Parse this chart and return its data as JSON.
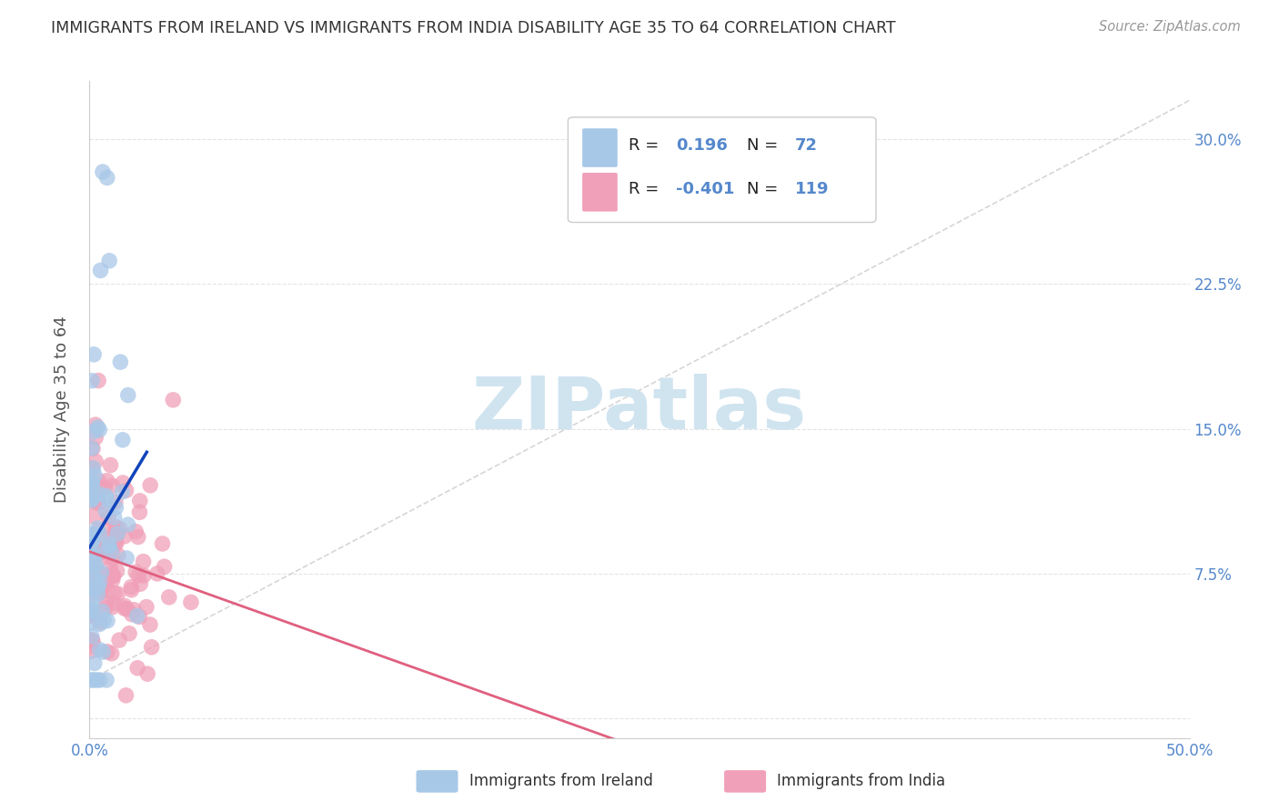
{
  "title": "IMMIGRANTS FROM IRELAND VS IMMIGRANTS FROM INDIA DISABILITY AGE 35 TO 64 CORRELATION CHART",
  "source": "Source: ZipAtlas.com",
  "ylabel": "Disability Age 35 to 64",
  "xlim": [
    0.0,
    0.5
  ],
  "ylim": [
    -0.01,
    0.33
  ],
  "ireland_R": 0.196,
  "ireland_N": 72,
  "india_R": -0.401,
  "india_N": 119,
  "ireland_color": "#a8c8e8",
  "india_color": "#f0a0b8",
  "ireland_line_color": "#1144bb",
  "india_line_color": "#e06080",
  "ref_line_color": "#cccccc",
  "legend_ireland": "Immigrants from Ireland",
  "legend_india": "Immigrants from India",
  "background_color": "#ffffff",
  "grid_color": "#dddddd",
  "text_color": "#333333",
  "axis_tick_color": "#5588cc",
  "watermark": "ZIPatlas",
  "watermark_color": "#d0e4f0",
  "ytick_vals": [
    0.0,
    0.075,
    0.15,
    0.225,
    0.3
  ],
  "ytick_labels": [
    "",
    "7.5%",
    "15.0%",
    "22.5%",
    "30.0%"
  ],
  "xtick_vals": [
    0.0,
    0.1,
    0.2,
    0.3,
    0.4,
    0.5
  ],
  "xtick_labels": [
    "0.0%",
    "",
    "",
    "",
    "",
    "50.0%"
  ]
}
